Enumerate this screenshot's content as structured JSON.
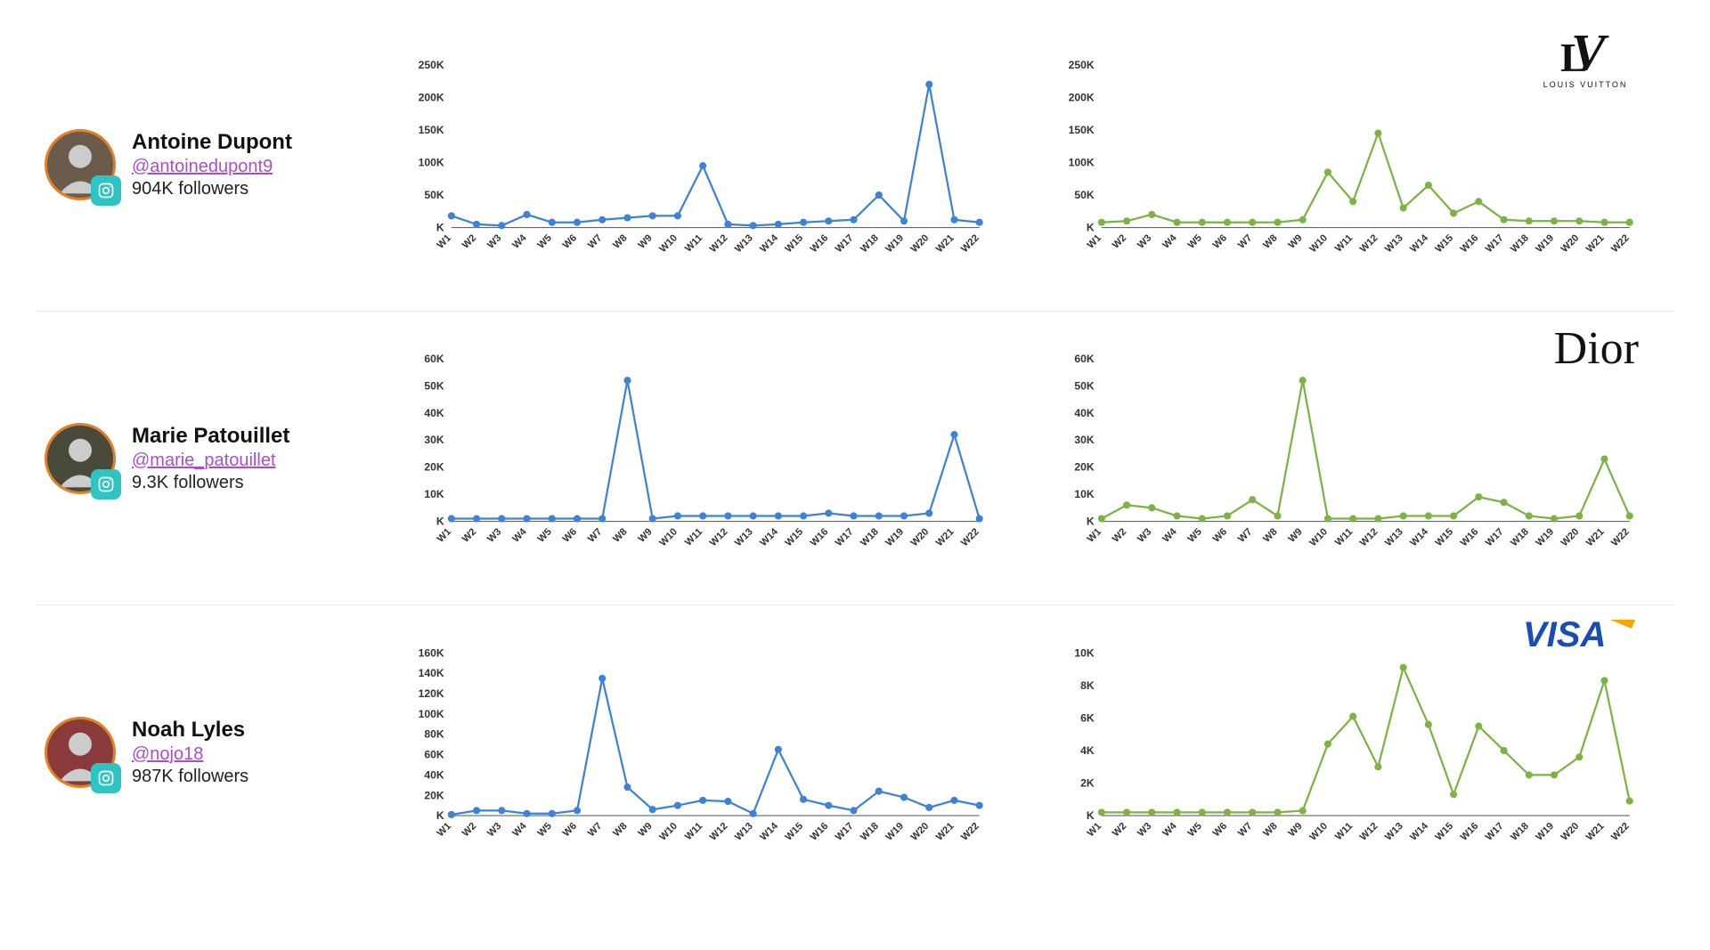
{
  "global": {
    "series_blue": "#3b82d8",
    "series_green": "#7cb342",
    "axis_color": "#666666",
    "tick_label_color": "#333333",
    "xtick_font_size": 11,
    "ytick_font_size": 12,
    "marker_radius": 4,
    "line_width": 2.2,
    "background": "#ffffff",
    "x_labels": [
      "W1",
      "W2",
      "W3",
      "W4",
      "W5",
      "W6",
      "W7",
      "W8",
      "W9",
      "W10",
      "W11",
      "W12",
      "W13",
      "W14",
      "W15",
      "W16",
      "W17",
      "W18",
      "W19",
      "W20",
      "W21",
      "W22"
    ]
  },
  "rows": [
    {
      "profile": {
        "name": "Antoine Dupont",
        "handle": "@antoinedupont9",
        "followers": "904K followers",
        "avatar_bg": "#6b5b4a"
      },
      "brand": "LOUIS VUITTON",
      "chart_left": {
        "type": "line",
        "color": "#3b82d8",
        "ylim": [
          0,
          250
        ],
        "ytick_step": 50,
        "ytick_labels": [
          "K",
          "50K",
          "100K",
          "150K",
          "200K",
          "250K"
        ],
        "values": [
          18,
          5,
          3,
          20,
          8,
          8,
          12,
          15,
          18,
          18,
          95,
          5,
          3,
          5,
          8,
          10,
          12,
          50,
          10,
          220,
          12,
          8
        ]
      },
      "chart_right": {
        "type": "line",
        "color": "#7cb342",
        "ylim": [
          0,
          250
        ],
        "ytick_step": 50,
        "ytick_labels": [
          "K",
          "50K",
          "100K",
          "150K",
          "200K",
          "250K"
        ],
        "values": [
          8,
          10,
          20,
          8,
          8,
          8,
          8,
          8,
          12,
          85,
          40,
          145,
          30,
          65,
          22,
          40,
          12,
          10,
          10,
          10,
          8,
          8
        ]
      }
    },
    {
      "profile": {
        "name": "Marie Patouillet",
        "handle": "@marie_patouillet",
        "followers": "9.3K followers",
        "avatar_bg": "#4a4a3a"
      },
      "brand": "Dior",
      "chart_left": {
        "type": "line",
        "color": "#3b82d8",
        "ylim": [
          0,
          60
        ],
        "ytick_step": 10,
        "ytick_labels": [
          "K",
          "10K",
          "20K",
          "30K",
          "40K",
          "50K",
          "60K"
        ],
        "values": [
          1,
          1,
          1,
          1,
          1,
          1,
          1,
          52,
          1,
          2,
          2,
          2,
          2,
          2,
          2,
          3,
          2,
          2,
          2,
          3,
          32,
          1
        ]
      },
      "chart_right": {
        "type": "line",
        "color": "#7cb342",
        "ylim": [
          0,
          60
        ],
        "ytick_step": 10,
        "ytick_labels": [
          "K",
          "10K",
          "20K",
          "30K",
          "40K",
          "50K",
          "60K"
        ],
        "values": [
          1,
          6,
          5,
          2,
          1,
          2,
          8,
          2,
          52,
          1,
          1,
          1,
          2,
          2,
          2,
          9,
          7,
          2,
          1,
          2,
          23,
          2
        ]
      }
    },
    {
      "profile": {
        "name": "Noah Lyles",
        "handle": "@nojo18",
        "followers": "987K followers",
        "avatar_bg": "#8a3a3a"
      },
      "brand": "VISA",
      "chart_left": {
        "type": "line",
        "color": "#3b82d8",
        "ylim": [
          0,
          160
        ],
        "ytick_step": 20,
        "ytick_labels": [
          "K",
          "20K",
          "40K",
          "60K",
          "80K",
          "100K",
          "120K",
          "140K",
          "160K"
        ],
        "values": [
          1,
          5,
          5,
          2,
          2,
          5,
          135,
          28,
          6,
          10,
          15,
          14,
          2,
          65,
          16,
          10,
          5,
          24,
          18,
          8,
          15,
          10
        ]
      },
      "chart_right": {
        "type": "line",
        "color": "#7cb342",
        "ylim": [
          0,
          10
        ],
        "ytick_step": 2,
        "ytick_labels": [
          "K",
          "2K",
          "4K",
          "6K",
          "8K",
          "10K"
        ],
        "values": [
          0.2,
          0.2,
          0.2,
          0.2,
          0.2,
          0.2,
          0.2,
          0.2,
          0.3,
          4.4,
          6.1,
          3.0,
          9.1,
          5.6,
          1.3,
          5.5,
          4.0,
          2.5,
          2.5,
          3.6,
          8.3,
          0.9
        ]
      }
    }
  ]
}
